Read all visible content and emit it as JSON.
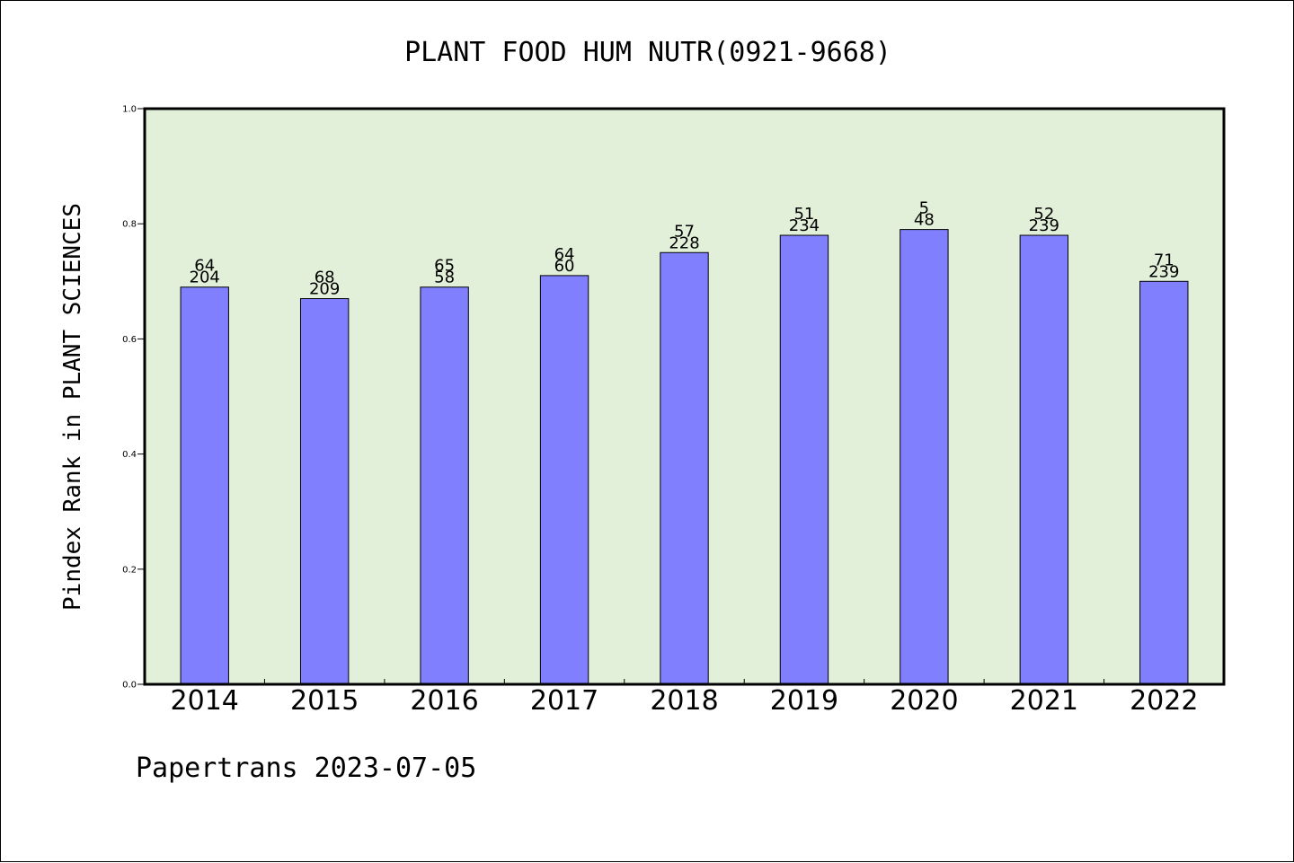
{
  "chart_data": {
    "type": "bar",
    "title": "PLANT FOOD HUM NUTR(0921-9668)",
    "xlabel": "",
    "ylabel": "Pindex Rank in PLANT SCIENCES",
    "categories": [
      "2014",
      "2015",
      "2016",
      "2017",
      "2018",
      "2019",
      "2020",
      "2021",
      "2022"
    ],
    "values": [
      0.69,
      0.67,
      0.69,
      0.71,
      0.75,
      0.78,
      0.79,
      0.78,
      0.7
    ],
    "labels_top": [
      "64",
      "68",
      "65",
      "64",
      "57",
      "51",
      "5",
      "52",
      "71"
    ],
    "labels_bottom": [
      "204",
      "209",
      "58",
      "60",
      "228",
      "234",
      "48",
      "239",
      "239"
    ],
    "ylim": [
      0,
      1.0
    ],
    "yticks": [
      "0.0",
      "0.2",
      "0.4",
      "0.6",
      "0.8",
      "1.0"
    ],
    "ytick_values": [
      0,
      0.2,
      0.4,
      0.6,
      0.8,
      1.0
    ],
    "grid": false,
    "legend": "none",
    "colors": {
      "bar_fill": "#8080ff",
      "plot_background": "#e2f0d9",
      "bar_stroke": "#000000"
    }
  },
  "footer": "Papertrans 2023-07-05"
}
